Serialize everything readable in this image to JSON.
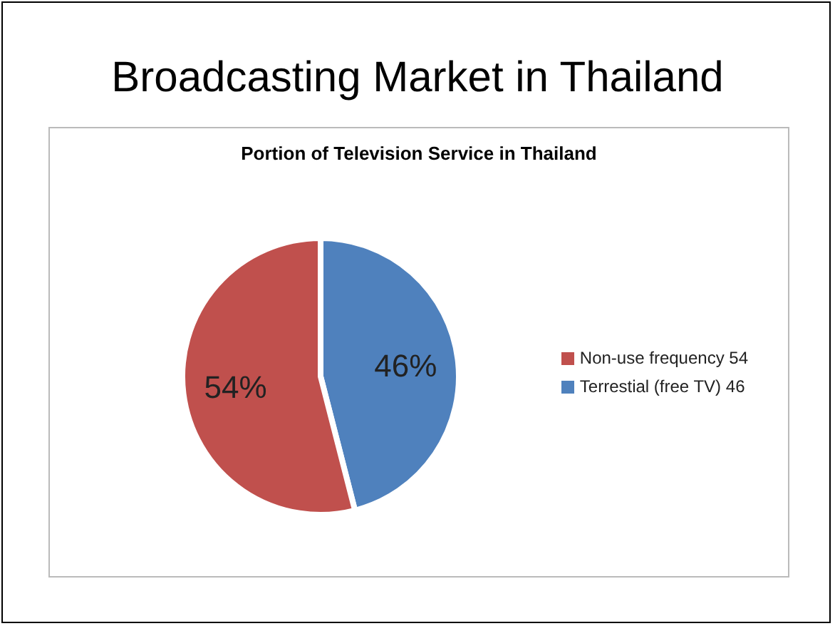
{
  "chart_data": {
    "type": "pie",
    "title": "Broadcasting Market in Thailand",
    "subtitle": "Portion of Television Service in Thailand",
    "categories": [
      "Terrestial (free TV) 46",
      "Non-use frequency 54"
    ],
    "values": [
      46,
      54
    ],
    "colors": [
      "#4f81bd",
      "#c0504d"
    ],
    "value_labels": [
      "46%",
      "54%"
    ],
    "legend": "right"
  }
}
